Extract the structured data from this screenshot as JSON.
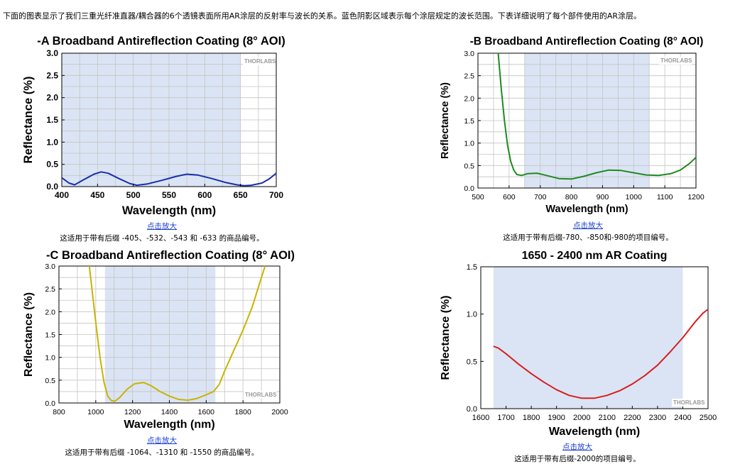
{
  "intro": "下面的图表显示了我们三重光纤准直器/耦合器的6个透镜表面所用AR涂层的反射率与波长的关系。蓝色阴影区域表示每个涂层规定的波长范围。下表详细说明了每个部件使用的AR涂层。",
  "watermark": "THORLABS",
  "colors": {
    "shade": "#dbe4f4",
    "grid": "#c4c4c4"
  },
  "captions": [
    {
      "link": "点击放大",
      "note": "这适用于带有后缀 -405、-532、-543 和 -633 的商品编号。"
    },
    {
      "link": "点击放大",
      "note": "这适用于带有后缀-780、-850和-980的项目编号。"
    },
    {
      "link": "点击放大",
      "note": "这适用于带有后缀 -1064、-1310 和 -1550 的商品编号。"
    },
    {
      "link": "点击放大",
      "note": "这适用于带有后缀-2000的项目编号。"
    }
  ],
  "chart_data": [
    {
      "type": "line",
      "title": "-A Broadband Antireflection Coating (8° AOI)",
      "xlabel": "Wavelength (nm)",
      "ylabel": "Reflectance (%)",
      "xlim": [
        400,
        700
      ],
      "ylim": [
        0,
        3.0
      ],
      "xticks": [
        400,
        450,
        500,
        550,
        600,
        650,
        700
      ],
      "yticks": [
        "0.0",
        "0.5",
        "1.0",
        "1.5",
        "2.0",
        "2.5",
        "3.0"
      ],
      "shaded_range": [
        400,
        650
      ],
      "grid": true,
      "series": [
        {
          "color": "#1a2fa8",
          "x": [
            400,
            410,
            418,
            430,
            445,
            455,
            465,
            480,
            495,
            505,
            520,
            540,
            560,
            575,
            590,
            610,
            630,
            645,
            655,
            665,
            680,
            690,
            700
          ],
          "y": [
            0.2,
            0.08,
            0.04,
            0.15,
            0.28,
            0.33,
            0.3,
            0.18,
            0.07,
            0.03,
            0.06,
            0.14,
            0.23,
            0.28,
            0.26,
            0.18,
            0.09,
            0.04,
            0.02,
            0.03,
            0.08,
            0.17,
            0.3
          ]
        }
      ]
    },
    {
      "type": "line",
      "title": "-B Broadband Antireflection Coating (8° AOI)",
      "xlabel": "Wavelength (nm)",
      "ylabel": "Reflectance (%)",
      "xlim": [
        500,
        1200
      ],
      "ylim": [
        0,
        3.0
      ],
      "xticks": [
        500,
        600,
        700,
        800,
        900,
        1000,
        1100,
        1200
      ],
      "yticks": [
        "0.0",
        "0.5",
        "1.0",
        "1.5",
        "2.0",
        "2.5",
        "3.0"
      ],
      "shaded_range": [
        650,
        1050
      ],
      "grid": true,
      "series": [
        {
          "color": "#1f8a1f",
          "x": [
            565,
            575,
            585,
            595,
            605,
            615,
            625,
            640,
            660,
            690,
            720,
            760,
            800,
            840,
            880,
            920,
            960,
            1000,
            1040,
            1080,
            1120,
            1150,
            1180,
            1200
          ],
          "y": [
            3.0,
            2.2,
            1.5,
            0.95,
            0.6,
            0.4,
            0.3,
            0.28,
            0.32,
            0.33,
            0.28,
            0.21,
            0.2,
            0.26,
            0.34,
            0.4,
            0.39,
            0.34,
            0.29,
            0.28,
            0.32,
            0.4,
            0.55,
            0.68
          ]
        }
      ]
    },
    {
      "type": "line",
      "title": "-C Broadband Antireflection Coating (8° AOI)",
      "xlabel": "Wavelength (nm)",
      "ylabel": "Reflectance (%)",
      "xlim": [
        800,
        2000
      ],
      "ylim": [
        0,
        3.0
      ],
      "xticks": [
        800,
        1000,
        1200,
        1400,
        1600,
        1800,
        2000
      ],
      "yticks": [
        "0.0",
        "0.5",
        "1.0",
        "1.5",
        "2.0",
        "2.5",
        "3.0"
      ],
      "shaded_range": [
        1050,
        1650
      ],
      "grid": true,
      "series": [
        {
          "color": "#c8b400",
          "x": [
            965,
            985,
            1005,
            1025,
            1045,
            1065,
            1085,
            1105,
            1130,
            1170,
            1210,
            1260,
            1300,
            1350,
            1400,
            1450,
            1500,
            1550,
            1600,
            1640,
            1670,
            1700,
            1750,
            1800,
            1850,
            1900,
            1920
          ],
          "y": [
            3.0,
            2.3,
            1.6,
            0.95,
            0.45,
            0.15,
            0.05,
            0.04,
            0.12,
            0.3,
            0.42,
            0.45,
            0.38,
            0.25,
            0.15,
            0.08,
            0.06,
            0.1,
            0.18,
            0.25,
            0.4,
            0.7,
            1.15,
            1.6,
            2.1,
            2.75,
            3.0
          ]
        }
      ]
    },
    {
      "type": "line",
      "title": "1650 - 2400 nm AR Coating",
      "xlabel": "Wavelength (nm)",
      "ylabel": "Reflectance (%)",
      "xlim": [
        1600,
        2500
      ],
      "ylim": [
        0,
        1.5
      ],
      "xticks": [
        1600,
        1700,
        1800,
        1900,
        2000,
        2100,
        2200,
        2300,
        2400,
        2500
      ],
      "yticks": [
        "0.0",
        "0.5",
        "1.0",
        "1.5"
      ],
      "shaded_range": [
        1650,
        2400
      ],
      "grid": false,
      "series": [
        {
          "color": "#d81e1e",
          "x": [
            1650,
            1670,
            1700,
            1750,
            1800,
            1850,
            1900,
            1950,
            2000,
            2050,
            2100,
            2150,
            2200,
            2250,
            2300,
            2350,
            2400,
            2450,
            2480,
            2500
          ],
          "y": [
            0.66,
            0.64,
            0.58,
            0.47,
            0.37,
            0.28,
            0.2,
            0.14,
            0.11,
            0.11,
            0.14,
            0.19,
            0.26,
            0.35,
            0.46,
            0.6,
            0.75,
            0.92,
            1.01,
            1.05
          ]
        }
      ]
    }
  ]
}
